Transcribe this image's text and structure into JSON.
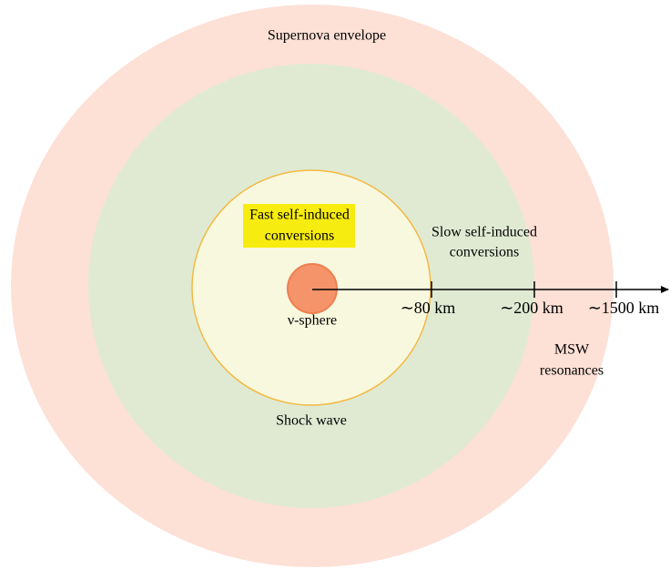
{
  "labels": {
    "envelope": "Supernova envelope",
    "fast": [
      "Fast self-induced",
      "conversions"
    ],
    "slow": [
      "Slow self-induced",
      "conversions"
    ],
    "nu_sphere": "ν-sphere",
    "msw": [
      "MSW",
      "resonances"
    ],
    "shock": "Shock wave"
  },
  "axis_ticks": [
    "∼80 km",
    "∼200 km",
    "∼1500 km"
  ]
}
